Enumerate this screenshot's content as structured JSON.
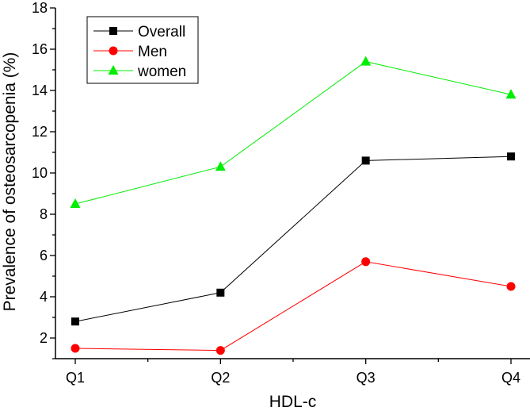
{
  "chart_data": {
    "type": "line",
    "title": "",
    "xlabel": "HDL-c",
    "ylabel": "Prevalence of osteosarcopenia (%)",
    "categories": [
      "Q1",
      "Q2",
      "Q3",
      "Q4"
    ],
    "ylim": [
      1,
      18
    ],
    "yticks": [
      2,
      4,
      6,
      8,
      10,
      12,
      14,
      16,
      18
    ],
    "grid": false,
    "legend_position": "top-left",
    "series": [
      {
        "name": "Overall",
        "values": [
          2.8,
          4.2,
          10.6,
          10.8
        ],
        "color": "#000000",
        "marker": "square"
      },
      {
        "name": "Men",
        "values": [
          1.5,
          1.4,
          5.7,
          4.5
        ],
        "color": "#ff0000",
        "marker": "circle"
      },
      {
        "name": "women",
        "values": [
          8.5,
          10.3,
          15.4,
          13.8
        ],
        "color": "#00ee00",
        "marker": "triangle"
      }
    ]
  }
}
